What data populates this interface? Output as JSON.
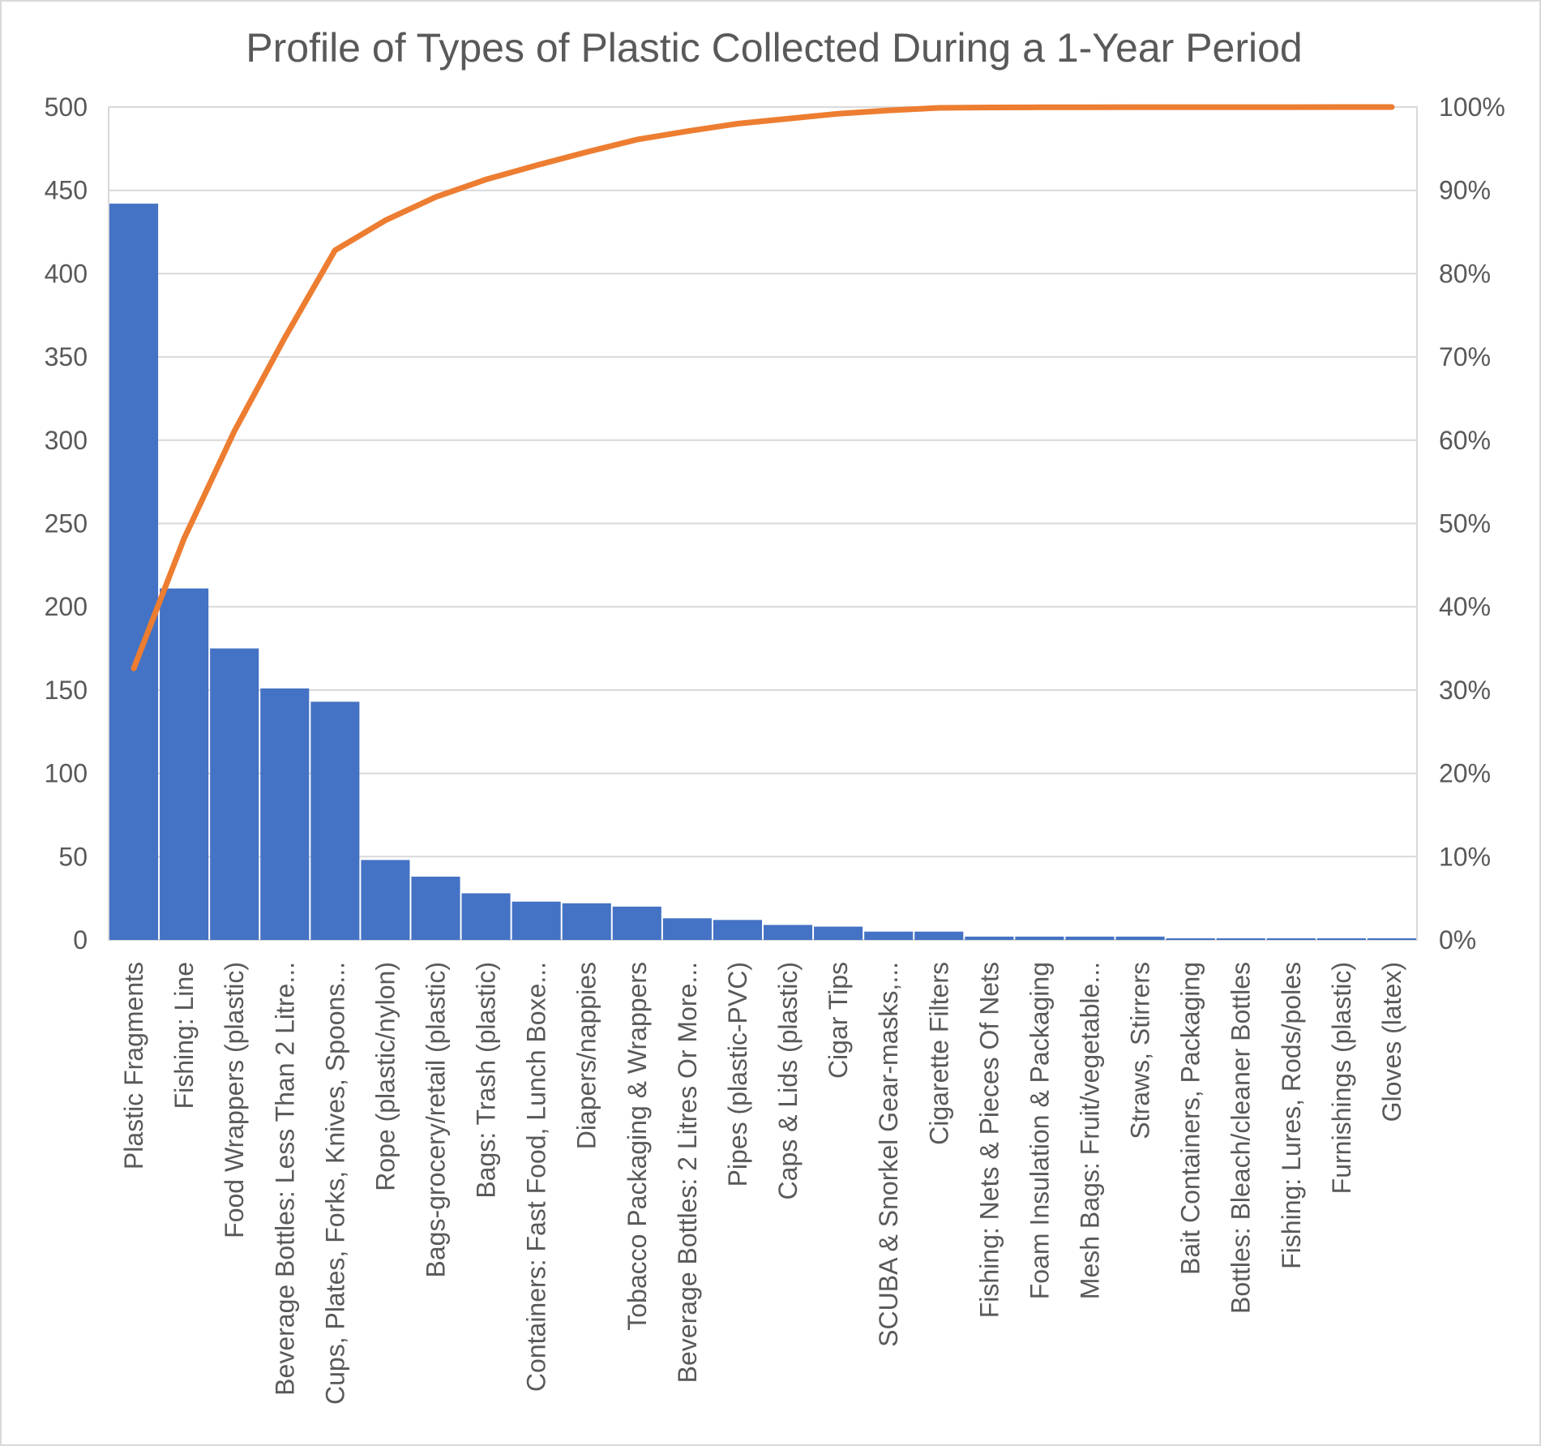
{
  "chart_data": {
    "type": "bar",
    "title": "Profile of Types of Plastic Collected During a 1-Year Period",
    "categories": [
      "Plastic Fragments",
      "Fishing: Line",
      "Food Wrappers (plastic)",
      "Beverage Bottles: Less Than 2 Litre...",
      "Cups, Plates, Forks, Knives, Spoons...",
      "Rope (plastic/nylon)",
      "Bags-grocery/retail (plastic)",
      "Bags: Trash (plastic)",
      "Containers: Fast Food, Lunch Boxe...",
      "Diapers/nappies",
      "Tobacco Packaging & Wrappers",
      "Beverage Bottles: 2 Litres Or More...",
      "Pipes (plastic-PVC)",
      "Caps & Lids (plastic)",
      "Cigar Tips",
      "SCUBA & Snorkel Gear-masks,...",
      "Cigarette Filters",
      "Fishing: Nets & Pieces Of Nets",
      "Foam Insulation & Packaging",
      "Mesh Bags: Fruit/vegetable...",
      "Straws, Stirrers",
      "Bait Containers, Packaging",
      "Bottles: Bleach/cleaner Bottles",
      "Fishing: Lures, Rods/poles",
      "Furnishings (plastic)",
      "Gloves (latex)"
    ],
    "series": [
      {
        "values": [
          442,
          211,
          175,
          151,
          143,
          48,
          38,
          28,
          23,
          22,
          20,
          13,
          12,
          9,
          8,
          5,
          5,
          2,
          2,
          2,
          2,
          1,
          1,
          1,
          1,
          1
        ]
      },
      {
        "values": [
          32.6,
          48.2,
          61.1,
          72.3,
          82.8,
          86.4,
          89.2,
          91.3,
          93.0,
          94.6,
          96.1,
          97.1,
          98.0,
          98.6,
          99.2,
          99.6,
          99.9,
          99.95,
          99.97,
          99.98,
          99.99,
          99.99,
          99.99,
          99.99,
          100,
          100
        ]
      }
    ],
    "y_left": {
      "ylim": [
        0,
        500
      ],
      "ticks": [
        "0",
        "50",
        "100",
        "150",
        "200",
        "250",
        "300",
        "350",
        "400",
        "450",
        "500"
      ]
    },
    "y_right": {
      "ylim": [
        0,
        100
      ],
      "ticks": [
        "0%",
        "10%",
        "20%",
        "30%",
        "40%",
        "50%",
        "60%",
        "70%",
        "80%",
        "90%",
        "100%"
      ]
    },
    "grid": true,
    "legend": "none",
    "colors": {
      "bar": "#4472c4",
      "line": "#ed7d31"
    }
  }
}
